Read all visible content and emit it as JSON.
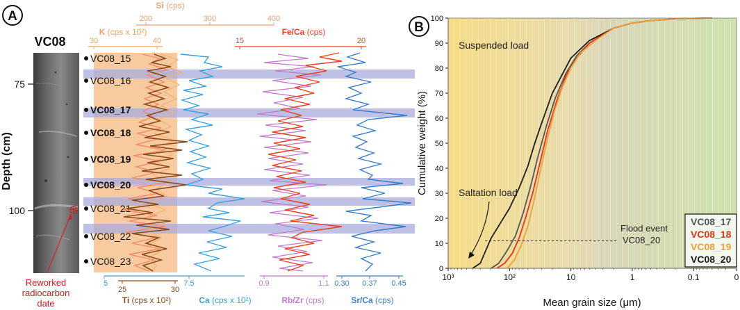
{
  "panel_a": {
    "label": "A",
    "core_name": "VC08",
    "depth_label": "Depth (cm)",
    "depth_ticks": [
      "75",
      "100"
    ],
    "samples": [
      {
        "name": "VC08_15",
        "bold": false
      },
      {
        "name": "VC08_16",
        "bold": false
      },
      {
        "name": "VC08_17",
        "bold": true
      },
      {
        "name": "VC08_18",
        "bold": true
      },
      {
        "name": "VC08_19",
        "bold": true
      },
      {
        "name": "VC08_20",
        "bold": true
      },
      {
        "name": "VC08_21",
        "bold": false
      },
      {
        "name": "VC08_22",
        "bold": false
      },
      {
        "name": "VC08_23",
        "bold": false
      }
    ],
    "annotation": {
      "line1": "Reworked",
      "line2": "radiocarbon",
      "line3": "date"
    },
    "top_axes": {
      "si": {
        "title": "Si",
        "unit": " (cps)",
        "ticks": [
          "200",
          "300",
          "400"
        ],
        "color": "#f0a070"
      },
      "k": {
        "title": "K",
        "unit": " (cps x 10²)",
        "ticks": [
          "30",
          "40"
        ],
        "color": "#f2a55a"
      },
      "fe_ca": {
        "title": "Fe/Ca",
        "unit": " (cps)",
        "ticks": [
          "15",
          "20"
        ],
        "color": "#e8421f"
      }
    },
    "bottom_axes": {
      "ti": {
        "title": "Ti",
        "unit": " (cps x 10²)",
        "ticks": [
          "25",
          "30"
        ],
        "color": "#8a4a1c"
      },
      "ca": {
        "title": "Ca",
        "unit": " (cps x 10²)",
        "ticks": [
          "5",
          "7.5"
        ],
        "color": "#3aa0dc"
      },
      "rb_zr": {
        "title": "Rb/Zr",
        "unit": " (cps)",
        "ticks": [
          "0.9",
          "1.1"
        ],
        "color": "#c07ac8"
      },
      "sr_ca": {
        "title": "Sr/Ca",
        "unit": " (cps)",
        "ticks": [
          "0.30",
          "0.37",
          "0.45"
        ],
        "color": "#3a7ec8"
      }
    }
  },
  "panel_b": {
    "label": "B",
    "ylabel": "Cumulative weight (%)",
    "xlabel": "Mean grain size (μm)",
    "annotations": {
      "suspended": "Suspended load",
      "saltation": "Saltation load",
      "flood_line1": "Flood event",
      "flood_line2": "VC08_20"
    },
    "legend": [
      {
        "name": "VC08_17",
        "color": "#555555"
      },
      {
        "name": "VC08_18",
        "color": "#e8301c"
      },
      {
        "name": "VC08_19",
        "color": "#f2a035"
      },
      {
        "name": "VC08_20",
        "color": "#1a1a1a"
      }
    ]
  },
  "chart_data": {
    "type": "line",
    "title": "",
    "xlabel": "Mean grain size (μm)",
    "ylabel": "Cumulative weight (%)",
    "x_scale": "log-reversed",
    "xlim": [
      1000,
      0.02
    ],
    "ylim": [
      0,
      100
    ],
    "x_tick_labels": [
      "10³",
      "10²",
      "10",
      "1",
      "0.1",
      "0"
    ],
    "y_ticks": [
      0,
      10,
      20,
      30,
      40,
      50,
      60,
      70,
      80,
      90,
      100
    ],
    "reference_line": {
      "y": 11,
      "label": "Flood event VC08_20"
    },
    "series": [
      {
        "name": "VC08_20",
        "color": "#1a1a1a",
        "x": [
          400,
          300,
          200,
          150,
          100,
          70,
          50,
          40,
          30,
          20,
          10,
          5,
          2,
          1,
          0.5,
          0.2,
          0.1,
          0.05
        ],
        "y": [
          0,
          2,
          12,
          17,
          24,
          32,
          41,
          49,
          58,
          70,
          84,
          91,
          96,
          98,
          99,
          99.7,
          99.9,
          100
        ]
      },
      {
        "name": "VC08_17",
        "color": "#555555",
        "x": [
          200,
          150,
          110,
          80,
          60,
          45,
          35,
          25,
          18,
          12,
          8,
          5,
          2,
          1,
          0.5,
          0.2,
          0.1,
          0.05
        ],
        "y": [
          0,
          2,
          7,
          13,
          22,
          33,
          44,
          57,
          68,
          78,
          85,
          90,
          96,
          98,
          99,
          99.7,
          99.9,
          100
        ]
      },
      {
        "name": "VC08_18",
        "color": "#e8301c",
        "x": [
          160,
          120,
          90,
          70,
          55,
          42,
          32,
          24,
          17,
          12,
          8,
          5,
          2,
          1,
          0.5,
          0.2,
          0.1,
          0.05
        ],
        "y": [
          0,
          2,
          6,
          12,
          20,
          30,
          42,
          55,
          67,
          77,
          84,
          90,
          96,
          98,
          99,
          99.7,
          99.9,
          100
        ]
      },
      {
        "name": "VC08_19",
        "color": "#f2a035",
        "x": [
          110,
          85,
          65,
          50,
          40,
          32,
          25,
          19,
          14,
          10,
          7,
          4,
          2,
          1,
          0.5,
          0.2,
          0.1,
          0.05
        ],
        "y": [
          0,
          3,
          9,
          17,
          27,
          38,
          50,
          62,
          72,
          80,
          86,
          91,
          96,
          98,
          99,
          99.7,
          99.9,
          100
        ]
      }
    ]
  }
}
